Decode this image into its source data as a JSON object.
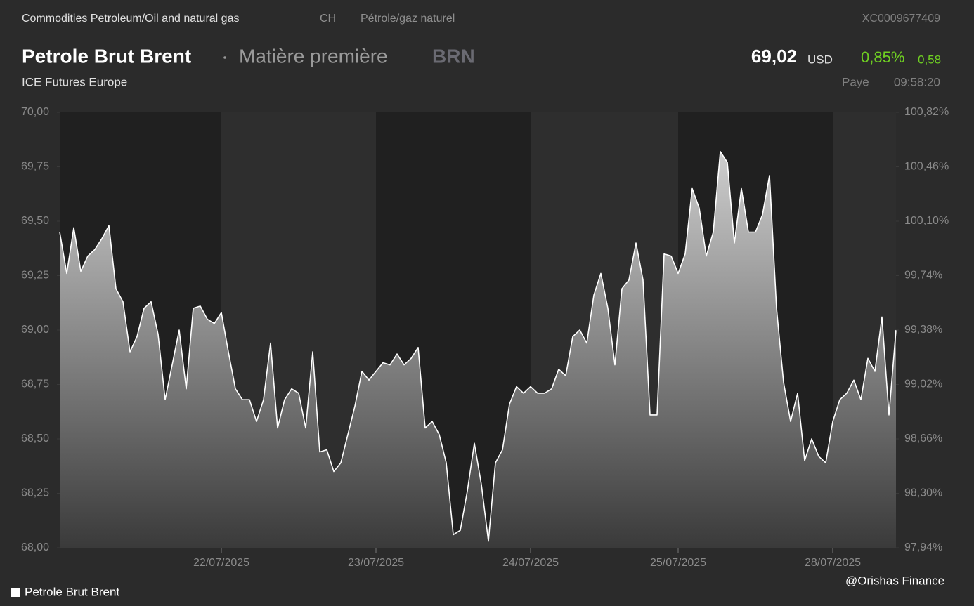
{
  "header": {
    "category": "Commodities Petroleum/Oil and natural gas",
    "country": "CH",
    "category_local": "Pétrole/gaz naturel",
    "isin": "XC0009677409",
    "name": "Petrole Brut Brent",
    "asset_type": "Matière première",
    "symbol": "BRN",
    "price": "69,02",
    "currency": "USD",
    "change_pct": "0,85%",
    "change": "0,58",
    "exchange": "ICE Futures Europe",
    "status": "Paye",
    "time": "09:58:20"
  },
  "watermark": "@Orishas Finance",
  "chart_data": {
    "type": "line",
    "categories": [
      null,
      null,
      null,
      null,
      null,
      null,
      null,
      null,
      null,
      null,
      null,
      null,
      null,
      null,
      null,
      null,
      null,
      null,
      null,
      null,
      null,
      null,
      null,
      "22/07/2025",
      null,
      null,
      null,
      null,
      null,
      null,
      null,
      null,
      null,
      null,
      null,
      null,
      null,
      null,
      null,
      null,
      null,
      null,
      null,
      null,
      null,
      "23/07/2025",
      null,
      null,
      null,
      null,
      null,
      null,
      null,
      null,
      null,
      null,
      null,
      null,
      null,
      null,
      null,
      null,
      null,
      null,
      null,
      null,
      null,
      "24/07/2025",
      null,
      null,
      null,
      null,
      null,
      null,
      null,
      null,
      null,
      null,
      null,
      null,
      null,
      null,
      null,
      null,
      null,
      null,
      null,
      null,
      "25/07/2025",
      null,
      null,
      null,
      null,
      null,
      null,
      null,
      null,
      null,
      null,
      null,
      null,
      null,
      null,
      null,
      null,
      null,
      null,
      null,
      null,
      null,
      "28/07/2025",
      null,
      null,
      null,
      null,
      null,
      null,
      null,
      null,
      null
    ],
    "series": [
      {
        "name": "Petrole Brut Brent",
        "color": "#ffffff",
        "values": [
          69.45,
          69.26,
          69.47,
          69.27,
          69.34,
          69.37,
          69.42,
          69.48,
          69.19,
          69.13,
          68.9,
          68.97,
          69.1,
          69.13,
          68.98,
          68.68,
          68.84,
          69.0,
          68.73,
          69.1,
          69.11,
          69.05,
          69.03,
          69.08,
          68.9,
          68.73,
          68.68,
          68.68,
          68.58,
          68.68,
          68.94,
          68.55,
          68.68,
          68.73,
          68.71,
          68.55,
          68.9,
          68.44,
          68.45,
          68.35,
          68.39,
          68.52,
          68.65,
          68.81,
          68.77,
          68.81,
          68.85,
          68.84,
          68.89,
          68.84,
          68.87,
          68.92,
          68.55,
          68.58,
          68.52,
          68.39,
          68.06,
          68.08,
          68.26,
          68.48,
          68.29,
          68.03,
          68.39,
          68.45,
          68.66,
          68.74,
          68.71,
          68.74,
          68.71,
          68.71,
          68.73,
          68.82,
          68.79,
          68.97,
          69.0,
          68.94,
          69.16,
          69.26,
          69.1,
          68.84,
          69.19,
          69.23,
          69.4,
          69.23,
          68.61,
          68.61,
          69.35,
          69.34,
          69.26,
          69.35,
          69.65,
          69.56,
          69.34,
          69.45,
          69.82,
          69.77,
          69.4,
          69.65,
          69.45,
          69.45,
          69.53,
          69.71,
          69.1,
          68.76,
          68.58,
          68.71,
          68.4,
          68.5,
          68.42,
          68.39,
          68.58,
          68.68,
          68.71,
          68.77,
          68.68,
          68.87,
          68.81,
          69.06,
          68.61,
          69.0
        ]
      }
    ],
    "ylim": [
      68,
      70
    ],
    "yticks": [
      {
        "value": 68,
        "label": "68,00"
      },
      {
        "value": 68.25,
        "label": "68,25"
      },
      {
        "value": 68.5,
        "label": "68,50"
      },
      {
        "value": 68.75,
        "label": "68,75"
      },
      {
        "value": 69,
        "label": "69,00"
      },
      {
        "value": 69.25,
        "label": "69,25"
      },
      {
        "value": 69.5,
        "label": "69,50"
      },
      {
        "value": 69.75,
        "label": "69,75"
      },
      {
        "value": 70,
        "label": "70,00"
      }
    ],
    "y2lim": [
      97.94,
      100.82
    ],
    "y2ticks": [
      {
        "value": 97.94,
        "label": "97,94%"
      },
      {
        "value": 98.3,
        "label": "98,30%"
      },
      {
        "value": 98.66,
        "label": "98,66%"
      },
      {
        "value": 99.02,
        "label": "99,02%"
      },
      {
        "value": 99.38,
        "label": "99,38%"
      },
      {
        "value": 99.74,
        "label": "99,74%"
      },
      {
        "value": 100.1,
        "label": "100,10%"
      },
      {
        "value": 100.46,
        "label": "100,46%"
      },
      {
        "value": 100.82,
        "label": "100,82%"
      }
    ],
    "legend": "bottom-left"
  }
}
